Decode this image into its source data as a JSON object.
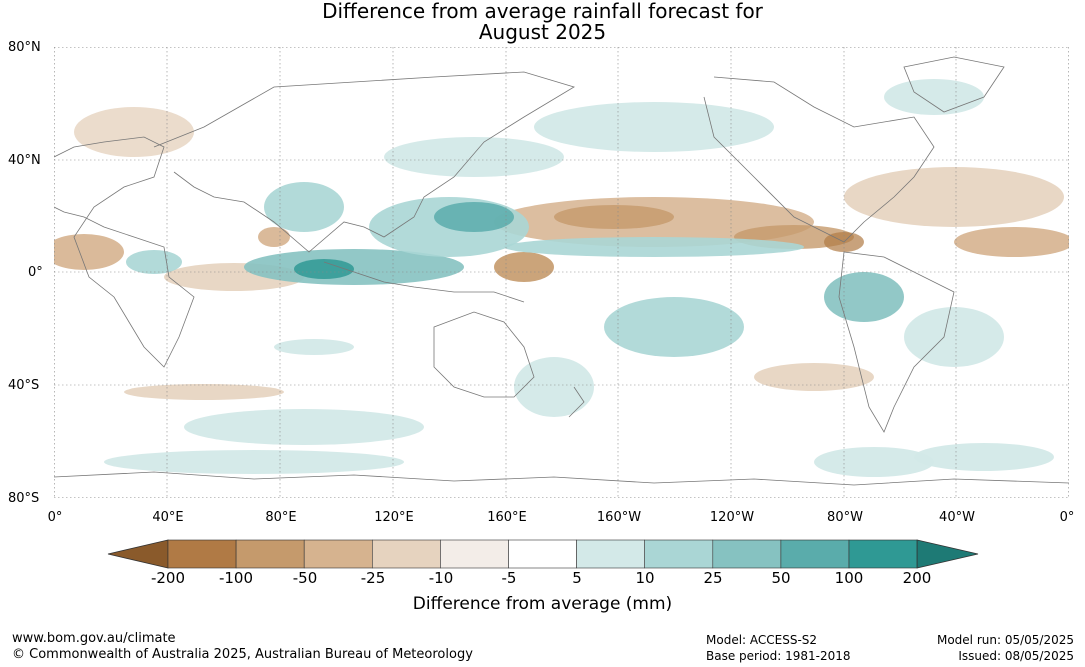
{
  "title": {
    "line1": "Difference from average rainfall forecast for",
    "line2": "August 2025"
  },
  "lat_labels": [
    "80°N",
    "40°N",
    "0°",
    "40°S",
    "80°S"
  ],
  "lon_labels": [
    "0°",
    "40°E",
    "80°E",
    "120°E",
    "160°E",
    "160°W",
    "120°W",
    "80°W",
    "40°W",
    "0°"
  ],
  "colorbar": {
    "title": "Difference from average (mm)",
    "tick_labels": [
      "-200",
      "-100",
      "-50",
      "-25",
      "-10",
      "-5",
      "5",
      "10",
      "25",
      "50",
      "100",
      "200"
    ],
    "colors": [
      "#8a5a2b",
      "#b07a45",
      "#c59a6c",
      "#d6b38f",
      "#e6d3bf",
      "#f3ede8",
      "#ffffff",
      "#d3e9e8",
      "#aad6d5",
      "#86c2c1",
      "#5aacab",
      "#2f9994",
      "#1e7a75"
    ]
  },
  "map": {
    "land_color": "#ffffff",
    "coast_color": "#777777",
    "grid_color": "#888888",
    "dry_colors": [
      "#d9b999",
      "#e6d3bf",
      "#f3ede8"
    ],
    "wet_colors": [
      "#d3e9e8",
      "#aad6d5",
      "#86c2c1",
      "#5aacab"
    ]
  },
  "footer": {
    "url": "www.bom.gov.au/climate",
    "copyright": "© Commonwealth of Australia 2025, Australian Bureau of Meteorology",
    "model": "Model: ACCESS-S2",
    "base_period": "Base period: 1981-2018",
    "model_run": "Model run: 05/05/2025",
    "issued": "Issued: 08/05/2025"
  }
}
